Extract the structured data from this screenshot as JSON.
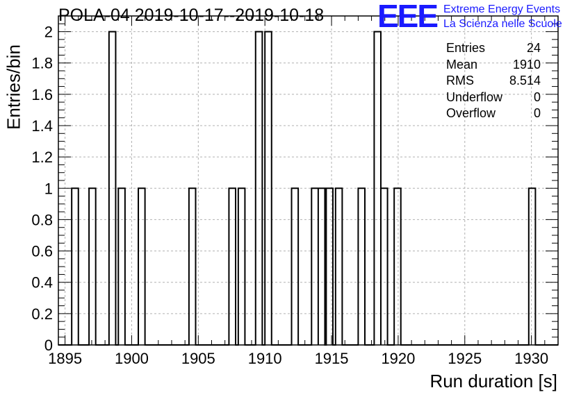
{
  "chart_data": {
    "type": "bar",
    "title": "POLA-04 2019-10-17--2019-10-18",
    "xlabel": "Run duration [s]",
    "ylabel": "Entries/bin",
    "xlim": [
      1894.5,
      1932.0
    ],
    "ylim": [
      0,
      2.1
    ],
    "grid": true,
    "bin_width": 0.5,
    "x_ticks": [
      "1895",
      "1900",
      "1905",
      "1910",
      "1915",
      "1920",
      "1925",
      "1930"
    ],
    "y_ticks": [
      "0",
      "0.2",
      "0.4",
      "0.6",
      "0.8",
      "1",
      "1.2",
      "1.4",
      "1.6",
      "1.8",
      "2"
    ],
    "bins": [
      {
        "x": 1895.5,
        "value": 1
      },
      {
        "x": 1896.8,
        "value": 1
      },
      {
        "x": 1898.3,
        "value": 2
      },
      {
        "x": 1899.0,
        "value": 1
      },
      {
        "x": 1900.5,
        "value": 1
      },
      {
        "x": 1904.3,
        "value": 1
      },
      {
        "x": 1907.3,
        "value": 1
      },
      {
        "x": 1908.0,
        "value": 1
      },
      {
        "x": 1909.3,
        "value": 2
      },
      {
        "x": 1910.0,
        "value": 2
      },
      {
        "x": 1912.0,
        "value": 1
      },
      {
        "x": 1913.5,
        "value": 1
      },
      {
        "x": 1914.0,
        "value": 1
      },
      {
        "x": 1914.6,
        "value": 1
      },
      {
        "x": 1915.3,
        "value": 1
      },
      {
        "x": 1917.0,
        "value": 1
      },
      {
        "x": 1918.2,
        "value": 2
      },
      {
        "x": 1918.7,
        "value": 1
      },
      {
        "x": 1919.7,
        "value": 1
      },
      {
        "x": 1929.8,
        "value": 1
      }
    ],
    "stats": [
      {
        "label": "Entries",
        "value": "24"
      },
      {
        "label": "Mean",
        "value": "1910"
      },
      {
        "label": "RMS",
        "value": "8.514"
      },
      {
        "label": "Underflow",
        "value": "0"
      },
      {
        "label": "Overflow",
        "value": "0"
      }
    ],
    "legend_placement": "top-right"
  },
  "logo": {
    "mark": "EEE",
    "line1": "Extreme Energy Events",
    "line2": "La Scienza nelle Scuole",
    "color": "#1a1aff"
  }
}
